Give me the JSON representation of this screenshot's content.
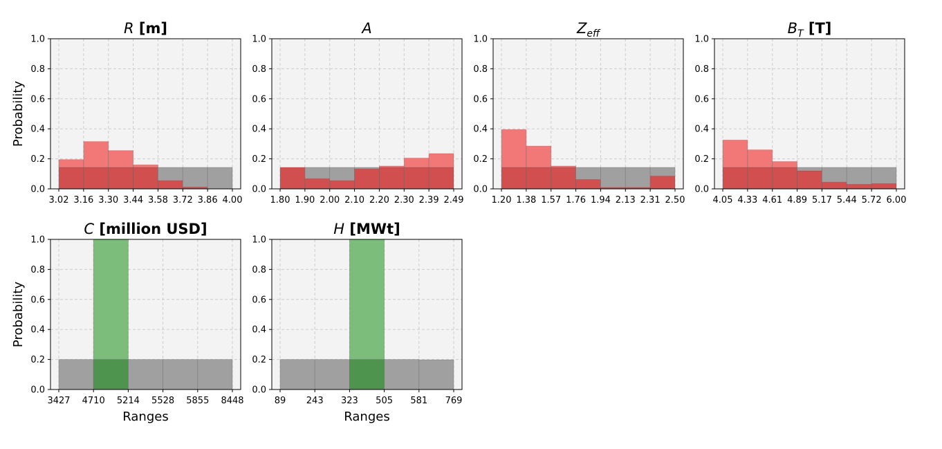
{
  "y_axis": {
    "label": "Probability",
    "ticks": [
      "0.0",
      "0.2",
      "0.4",
      "0.6",
      "0.8",
      "1.0"
    ],
    "ylim": [
      0,
      1
    ]
  },
  "x_axis_label": "Ranges",
  "colors": {
    "prior": "#a0a0a0",
    "posterior_inputs": "#f27878",
    "posterior_overlap": "#d14f4f",
    "posterior_outputs": "#7cbd7c",
    "output_overlap": "#4e934e",
    "plot_background": "#f3f3f3",
    "grid": "#cccccc"
  },
  "chart_data": [
    {
      "type": "bar",
      "title": {
        "symbol": "R",
        "sub": "",
        "unit": "[m]"
      },
      "xlabel": "",
      "ylabel": "Probability",
      "ylim": [
        0,
        1
      ],
      "grid": true,
      "tick_labels": [
        "3.02",
        "3.16",
        "3.30",
        "3.44",
        "3.58",
        "3.72",
        "3.86",
        "4.00"
      ],
      "series": [
        {
          "kind": "prior",
          "values": [
            0.143,
            0.143,
            0.143,
            0.143,
            0.143,
            0.143,
            0.143
          ]
        },
        {
          "kind": "posterior",
          "values": [
            0.195,
            0.315,
            0.255,
            0.16,
            0.055,
            0.012,
            0.0
          ]
        }
      ]
    },
    {
      "type": "bar",
      "title": {
        "symbol": "A",
        "sub": "",
        "unit": ""
      },
      "xlabel": "",
      "ylabel": "",
      "ylim": [
        0,
        1
      ],
      "grid": true,
      "tick_labels": [
        "1.80",
        "1.90",
        "2.00",
        "2.10",
        "2.20",
        "2.30",
        "2.39",
        "2.49"
      ],
      "series": [
        {
          "kind": "prior",
          "values": [
            0.143,
            0.143,
            0.143,
            0.143,
            0.143,
            0.143,
            0.143
          ]
        },
        {
          "kind": "posterior",
          "values": [
            0.143,
            0.068,
            0.055,
            0.133,
            0.152,
            0.205,
            0.235
          ]
        }
      ]
    },
    {
      "type": "bar",
      "title": {
        "symbol": "Z",
        "sub": "eff",
        "unit": ""
      },
      "xlabel": "",
      "ylabel": "",
      "ylim": [
        0,
        1
      ],
      "grid": true,
      "tick_labels": [
        "1.20",
        "1.38",
        "1.57",
        "1.76",
        "1.94",
        "2.13",
        "2.31",
        "2.50"
      ],
      "series": [
        {
          "kind": "prior",
          "values": [
            0.143,
            0.143,
            0.143,
            0.143,
            0.143,
            0.143,
            0.143
          ]
        },
        {
          "kind": "posterior",
          "values": [
            0.395,
            0.285,
            0.152,
            0.062,
            0.01,
            0.01,
            0.085
          ]
        }
      ]
    },
    {
      "type": "bar",
      "title": {
        "symbol": "B",
        "sub": "T",
        "unit": "[T]"
      },
      "xlabel": "",
      "ylabel": "",
      "ylim": [
        0,
        1
      ],
      "grid": true,
      "tick_labels": [
        "4.05",
        "4.33",
        "4.61",
        "4.89",
        "5.17",
        "5.44",
        "5.72",
        "6.00"
      ],
      "series": [
        {
          "kind": "prior",
          "values": [
            0.143,
            0.143,
            0.143,
            0.143,
            0.143,
            0.143,
            0.143
          ]
        },
        {
          "kind": "posterior",
          "values": [
            0.325,
            0.26,
            0.182,
            0.12,
            0.045,
            0.03,
            0.035
          ]
        }
      ]
    },
    {
      "type": "bar",
      "title": {
        "symbol": "C",
        "sub": "",
        "unit": "[million USD]"
      },
      "xlabel": "Ranges",
      "ylabel": "Probability",
      "ylim": [
        0,
        1
      ],
      "grid": true,
      "tick_labels": [
        "3427",
        "4710",
        "5214",
        "5528",
        "5855",
        "8448"
      ],
      "series": [
        {
          "kind": "prior",
          "values": [
            0.2,
            0.2,
            0.2,
            0.2,
            0.2
          ]
        },
        {
          "kind": "posterior",
          "values": [
            0.0,
            1.0,
            0.0,
            0.0,
            0.0
          ]
        }
      ]
    },
    {
      "type": "bar",
      "title": {
        "symbol": "H",
        "sub": "",
        "unit": "[MWt]"
      },
      "xlabel": "Ranges",
      "ylabel": "",
      "ylim": [
        0,
        1
      ],
      "grid": true,
      "tick_labels": [
        "89",
        "243",
        "323",
        "505",
        "581",
        "769"
      ],
      "series": [
        {
          "kind": "prior",
          "values": [
            0.2,
            0.2,
            0.2,
            0.2,
            0.198
          ]
        },
        {
          "kind": "posterior",
          "values": [
            0.0,
            0.0,
            1.0,
            0.0,
            0.0
          ]
        }
      ]
    }
  ]
}
